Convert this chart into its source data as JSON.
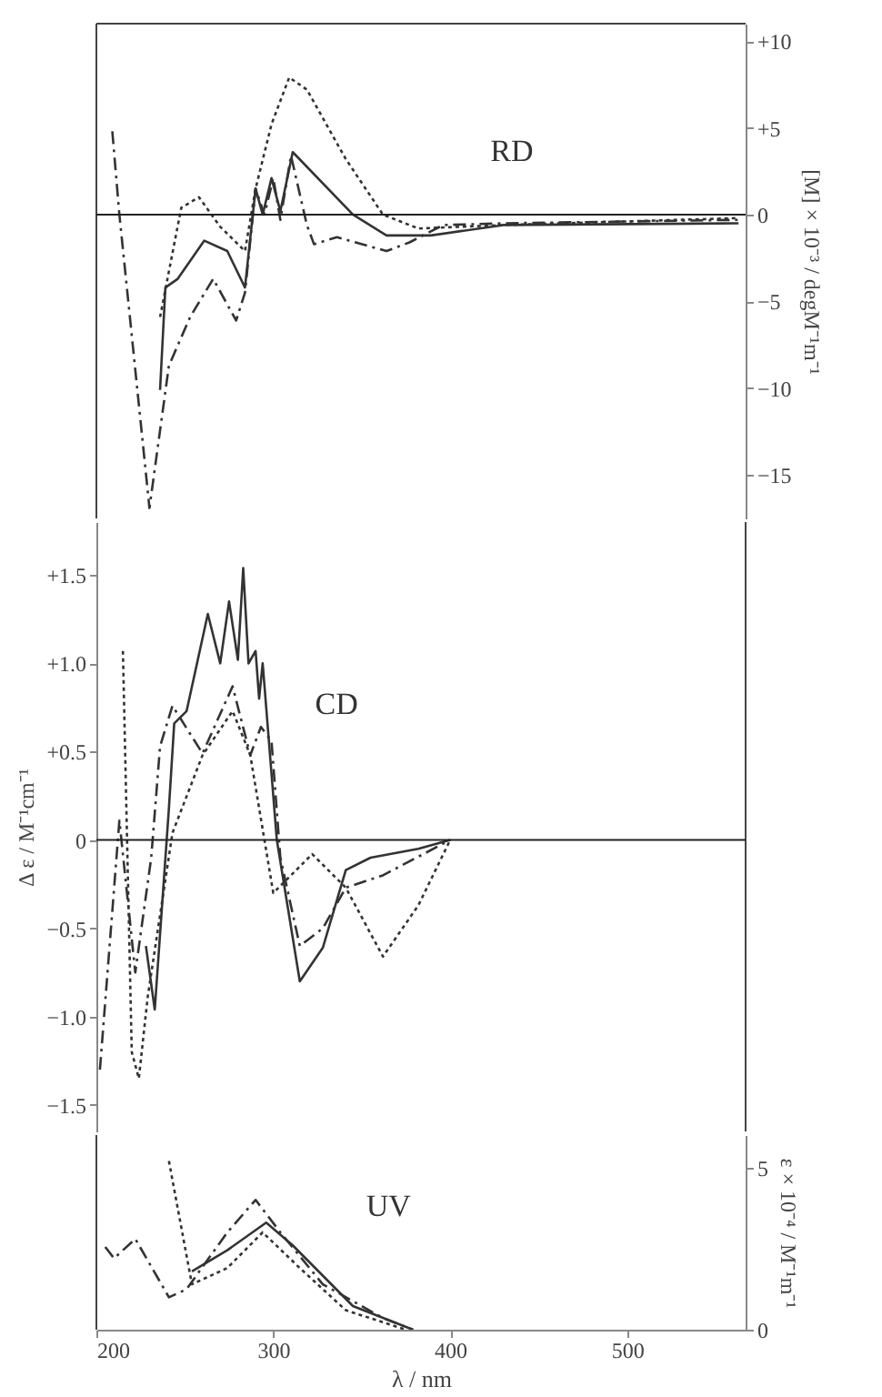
{
  "chart_data": [
    {
      "type": "line",
      "annotations": [
        "RD"
      ],
      "y2label": "[M] × 10⁻³ / degM⁻¹m⁻¹",
      "xlim": [
        200,
        567
      ],
      "xticks": [
        200,
        300,
        400,
        500
      ],
      "y2lim": [
        -17.5,
        11
      ],
      "y2ticks": [
        {
          "value": 10,
          "label": "+10"
        },
        {
          "value": 5,
          "label": "+5"
        },
        {
          "value": 0,
          "label": "0"
        },
        {
          "value": -5,
          "label": "−5"
        },
        {
          "value": -10,
          "label": "−10"
        },
        {
          "value": -15,
          "label": "−15"
        }
      ],
      "tick_labels": "y",
      "grid": false,
      "ref_lines": [
        {
          "axis": "y2",
          "value": 0
        }
      ],
      "series": [
        {
          "color": "#333333",
          "line_style": "solid",
          "axis": "y2",
          "x": [
            236,
            239,
            246,
            261,
            274,
            284,
            290,
            294,
            299,
            304,
            311,
            345,
            364,
            389,
            430,
            563
          ],
          "values": [
            -10.1,
            -4.2,
            -3.7,
            -1.5,
            -2.1,
            -4.2,
            1.5,
            0,
            2.1,
            0.2,
            3.6,
            0,
            -1.2,
            -1.2,
            -0.6,
            -0.5
          ]
        },
        {
          "color": "#333333",
          "line_style": "dotted",
          "axis": "y2",
          "x": [
            236,
            248,
            258,
            270,
            284,
            290,
            299,
            309,
            319,
            341,
            362,
            382,
            430,
            563
          ],
          "values": [
            -5.9,
            0.4,
            1.0,
            -0.7,
            -2.1,
            1.5,
            5.2,
            7.9,
            7.2,
            3.2,
            0,
            -0.8,
            -0.6,
            -0.2
          ]
        },
        {
          "color": "#333333",
          "line_style": "dashed",
          "axis": "y2",
          "x": [
            209,
            213,
            230,
            241,
            253,
            266,
            279,
            284,
            290,
            295,
            300,
            304,
            310,
            319,
            323,
            336,
            364,
            377,
            396,
            430,
            563
          ],
          "values": [
            4.8,
            0,
            -16.9,
            -8.7,
            -5.9,
            -3.7,
            -6.1,
            -4.5,
            1.5,
            0,
            2.1,
            -0.3,
            3.4,
            -0.6,
            -1.7,
            -1.3,
            -2.1,
            -1.6,
            -0.6,
            -0.5,
            -0.3
          ]
        }
      ]
    },
    {
      "type": "line",
      "annotations": [
        "CD"
      ],
      "ylabel": "Δ ε / M⁻¹cm⁻¹",
      "xlim": [
        200,
        567
      ],
      "xticks": [
        200,
        300,
        400,
        500
      ],
      "ylim": [
        -1.65,
        1.8
      ],
      "yticks": [
        {
          "value": 1.5,
          "label": "+1.5"
        },
        {
          "value": 1,
          "label": "+1.0"
        },
        {
          "value": 0.5,
          "label": "+0.5"
        },
        {
          "value": 0,
          "label": "0"
        },
        {
          "value": -0.5,
          "label": "−0.5"
        },
        {
          "value": -1,
          "label": "−1.0"
        },
        {
          "value": -1.5,
          "label": "−1.5"
        }
      ],
      "tick_labels": "y",
      "grid": false,
      "ref_lines": [
        {
          "axis": "y",
          "value": 0
        }
      ],
      "series": [
        {
          "color": "#333333",
          "line_style": "solid",
          "x": [
            228,
            233,
            241,
            244,
            251,
            263,
            270,
            275,
            280,
            283,
            286,
            290,
            292,
            294,
            302,
            315,
            328,
            341,
            355,
            382,
            400
          ],
          "values": [
            -0.6,
            -0.96,
            0.18,
            0.66,
            0.73,
            1.28,
            1.0,
            1.35,
            1.02,
            1.54,
            1.0,
            1.07,
            0.8,
            1.0,
            0,
            -0.8,
            -0.61,
            -0.17,
            -0.1,
            -0.05,
            0
          ]
        },
        {
          "color": "#333333",
          "line_style": "dotted",
          "x": [
            215,
            220,
            224,
            229,
            243,
            260,
            277,
            287,
            300,
            322,
            341,
            362,
            382,
            400
          ],
          "values": [
            1.07,
            -1.2,
            -1.35,
            -0.89,
            0.04,
            0.48,
            0.73,
            0.48,
            -0.3,
            -0.08,
            -0.27,
            -0.66,
            -0.37,
            0
          ]
        },
        {
          "color": "#333333",
          "line_style": "dashed",
          "x": [
            202,
            213,
            222,
            231,
            236,
            243,
            260,
            277,
            287,
            293,
            299,
            304,
            315,
            328,
            341,
            362,
            400
          ],
          "values": [
            -1.3,
            0.11,
            -0.75,
            -0.1,
            0.53,
            0.76,
            0.49,
            0.87,
            0.48,
            0.64,
            0.56,
            -0.1,
            -0.6,
            -0.5,
            -0.27,
            -0.2,
            0
          ]
        }
      ]
    },
    {
      "type": "line",
      "annotations": [
        "UV"
      ],
      "xlabel": "λ / nm",
      "y2label": "ε × 10⁻⁴ / M⁻¹m⁻¹",
      "xlim": [
        200,
        567
      ],
      "xticks": [
        200,
        300,
        400,
        500
      ],
      "y2lim": [
        0,
        6
      ],
      "y2ticks": [
        {
          "value": 0,
          "label": "0"
        },
        5
      ],
      "grid": false,
      "series": [
        {
          "color": "#333333",
          "line_style": "solid",
          "axis": "y2",
          "x": [
            254,
            274,
            296,
            311,
            345,
            379
          ],
          "values": [
            1.8,
            2.45,
            3.3,
            2.6,
            0.73,
            0
          ]
        },
        {
          "color": "#333333",
          "line_style": "dotted",
          "axis": "y2",
          "x": [
            241,
            254,
            274,
            294,
            315,
            341,
            375
          ],
          "values": [
            5.2,
            1.4,
            1.9,
            3.0,
            1.9,
            0.6,
            0
          ]
        },
        {
          "color": "#333333",
          "line_style": "dashed",
          "axis": "y2",
          "x": [
            205,
            210,
            222,
            241,
            251,
            274,
            290,
            304,
            328,
            362,
            379
          ],
          "values": [
            2.55,
            2.2,
            2.8,
            1.0,
            1.25,
            3.0,
            4.0,
            3.0,
            1.4,
            0.36,
            0
          ]
        }
      ]
    }
  ]
}
